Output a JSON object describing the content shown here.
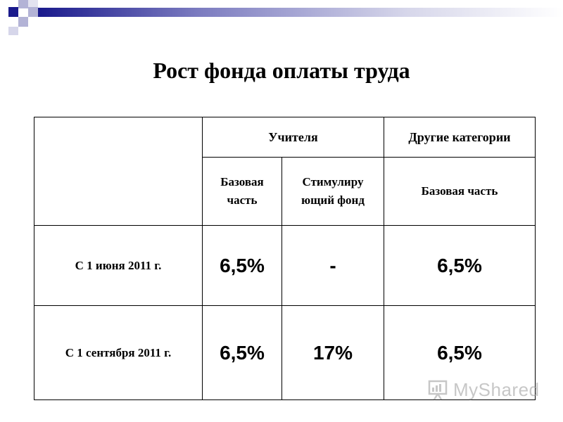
{
  "slide": {
    "title": "Рост фонда оплаты труда"
  },
  "table": {
    "header": {
      "teachers": "Учителя",
      "other": "Другие категории"
    },
    "subheader": {
      "teachers_base": "Базовая часть",
      "teachers_incentive": "Стимулиру ющий фонд",
      "other_base": "Базовая часть"
    },
    "rows": [
      {
        "label": "С 1 июня 2011 г.",
        "teachers_base": "6,5%",
        "teachers_incentive": "-",
        "other_base": "6,5%"
      },
      {
        "label": "С 1 сентября 2011 г.",
        "teachers_base": "6,5%",
        "teachers_incentive": "17%",
        "other_base": "6,5%"
      }
    ]
  },
  "watermark": {
    "text": "MyShared",
    "icon": "presentation-icon"
  },
  "colors": {
    "accent": "#1a1a8c",
    "accent_light": "#b3b3d6"
  }
}
